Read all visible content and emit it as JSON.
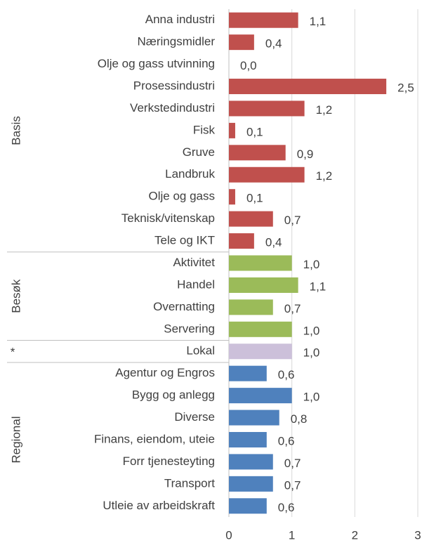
{
  "chart_data": {
    "type": "bar",
    "orientation": "horizontal",
    "groups": [
      {
        "name": "Basis",
        "color": "#c0504d",
        "categories": [
          "Anna industri",
          "Næringsmidler",
          "Olje og gass utvinning",
          "Prosessindustri",
          "Verkstedindustri",
          "Fisk",
          "Gruve",
          "Landbruk",
          "Olje og gass",
          "Teknisk/vitenskap",
          "Tele og IKT"
        ],
        "values": [
          1.1,
          0.4,
          0.0,
          2.5,
          1.2,
          0.1,
          0.9,
          1.2,
          0.1,
          0.7,
          0.4
        ],
        "value_labels": [
          "1,1",
          "0,4",
          "0,0",
          "2,5",
          "1,2",
          "0,1",
          "0,9",
          "1,2",
          "0,1",
          "0,7",
          "0,4"
        ]
      },
      {
        "name": "Besøk",
        "color": "#9bbb59",
        "categories": [
          "Aktivitet",
          "Handel",
          "Overnatting",
          "Servering"
        ],
        "values": [
          1.0,
          1.1,
          0.7,
          1.0
        ],
        "value_labels": [
          "1,0",
          "1,1",
          "0,7",
          "1,0"
        ]
      },
      {
        "name": "*",
        "color": "#ccc0da",
        "categories": [
          "Lokal"
        ],
        "values": [
          1.0
        ],
        "value_labels": [
          "1,0"
        ]
      },
      {
        "name": "Regional",
        "color": "#4f81bd",
        "categories": [
          "Agentur og Engros",
          "Bygg og anlegg",
          "Diverse",
          "Finans, eiendom, uteie",
          "Forr tjenesteyting",
          "Transport",
          "Utleie av arbeidskraft"
        ],
        "values": [
          0.6,
          1.0,
          0.8,
          0.6,
          0.7,
          0.7,
          0.6
        ],
        "value_labels": [
          "0,6",
          "1,0",
          "0,8",
          "0,6",
          "0,7",
          "0,7",
          "0,6"
        ]
      }
    ],
    "xlim": [
      0,
      3
    ],
    "xticks": [
      0,
      1,
      2,
      3
    ],
    "grid": true
  }
}
